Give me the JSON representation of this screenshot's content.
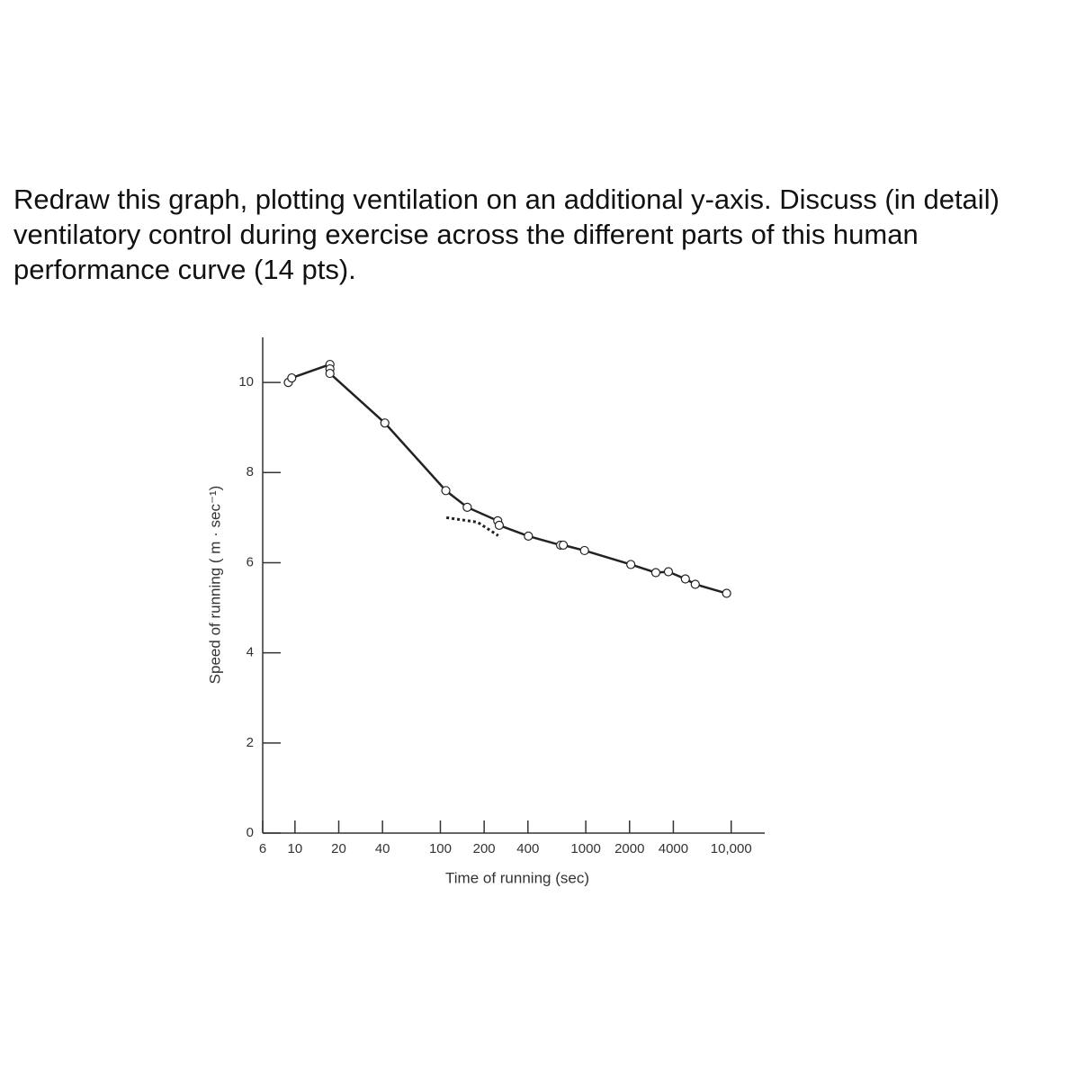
{
  "question": "Redraw this graph, plotting ventilation on an additional y-axis.  Discuss (in detail) ventilatory control during exercise across the different parts of this human performance curve (14 pts).",
  "chart_data": {
    "type": "line",
    "x_label": "Time of running (sec)",
    "y_label": "Speed of running ( m · sec⁻¹)",
    "x_scale": "log",
    "xlim": [
      6,
      17000
    ],
    "xticks": [
      6,
      10,
      20,
      40,
      100,
      200,
      400,
      1000,
      2000,
      4000,
      {
        "value": 10000,
        "label": "10,000"
      }
    ],
    "ylim": [
      0,
      11
    ],
    "yticks": [
      0,
      2,
      4,
      6,
      8,
      10
    ],
    "series": [
      {
        "color": "#222222",
        "marker": "circle",
        "x": [
          9,
          9.5,
          17.4,
          17.4,
          17.4,
          41.5,
          109,
          153,
          248,
          254,
          403,
          671,
          700,
          980,
          2040,
          3030,
          3700,
          4840,
          5660,
          9300
        ],
        "values": [
          10.0,
          10.1,
          10.4,
          10.3,
          10.2,
          9.1,
          7.6,
          7.23,
          6.93,
          6.83,
          6.59,
          6.39,
          6.39,
          6.27,
          5.96,
          5.78,
          5.8,
          5.64,
          5.52,
          5.32
        ]
      },
      {
        "color": "#222222",
        "dash": true,
        "x": [
          110,
          180,
          250
        ],
        "values": [
          7.0,
          6.9,
          6.6
        ]
      }
    ]
  }
}
